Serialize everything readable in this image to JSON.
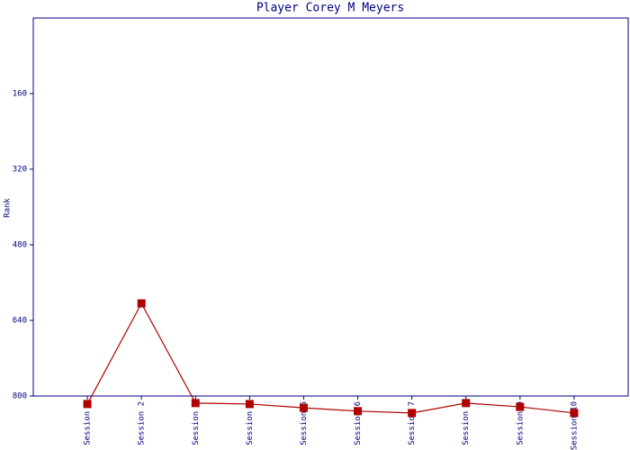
{
  "chart_data": {
    "type": "line",
    "title": "Player Corey M Meyers",
    "y_label": "Rank",
    "categories": [
      "Session 1",
      "Session 2",
      "Session 3",
      "Session 4",
      "Session 5",
      "Session 6",
      "Session 7",
      "Session 8",
      "Session 9",
      "Session 10"
    ],
    "series": [
      {
        "name": "Rank",
        "color": "#b00000",
        "values": [
          817,
          604,
          815,
          817,
          825,
          832,
          836,
          815,
          823,
          836
        ]
      }
    ],
    "ylim": [
      800,
      0
    ],
    "yticks": [
      160,
      320,
      480,
      640,
      800
    ],
    "grid": false
  }
}
